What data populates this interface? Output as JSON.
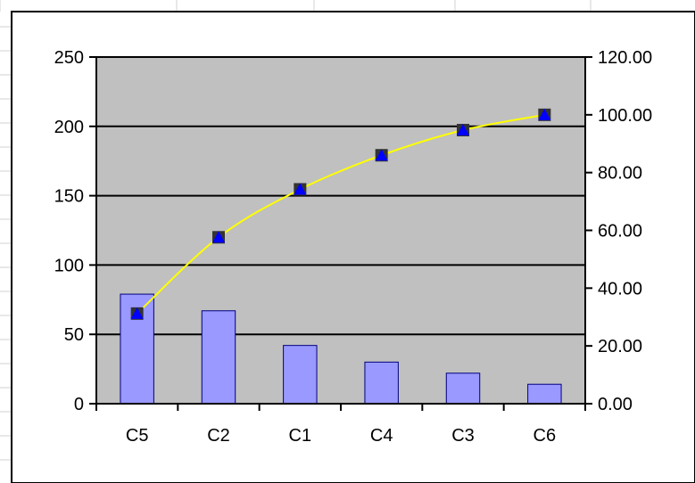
{
  "chart_data": {
    "type": "bar",
    "title": "",
    "xlabel": "",
    "ylabel": "",
    "categories": [
      "C5",
      "C2",
      "C1",
      "C4",
      "C3",
      "C6"
    ],
    "series": [
      {
        "type": "bar",
        "axis": "left",
        "values": [
          79,
          67,
          42,
          30,
          22,
          14
        ]
      },
      {
        "type": "line",
        "axis": "right",
        "values": [
          31.2,
          57.6,
          74.2,
          86.0,
          94.7,
          100.0
        ]
      }
    ],
    "ylim_left": [
      0,
      250
    ],
    "yticks_left": [
      "0",
      "50",
      "100",
      "150",
      "200",
      "250"
    ],
    "ylim_right": [
      0,
      120
    ],
    "yticks_right": [
      "0.00",
      "20.00",
      "40.00",
      "60.00",
      "80.00",
      "100.00",
      "120.00"
    ],
    "grid": true,
    "legend": "none",
    "colors": {
      "plot_background": "#c0c0c0",
      "bar_fill": "#9999ff",
      "bar_stroke": "#000080",
      "line": "#ffff00",
      "marker_square": "#333333",
      "marker_triangle": "#0000ff",
      "gridline": "#000000"
    }
  }
}
